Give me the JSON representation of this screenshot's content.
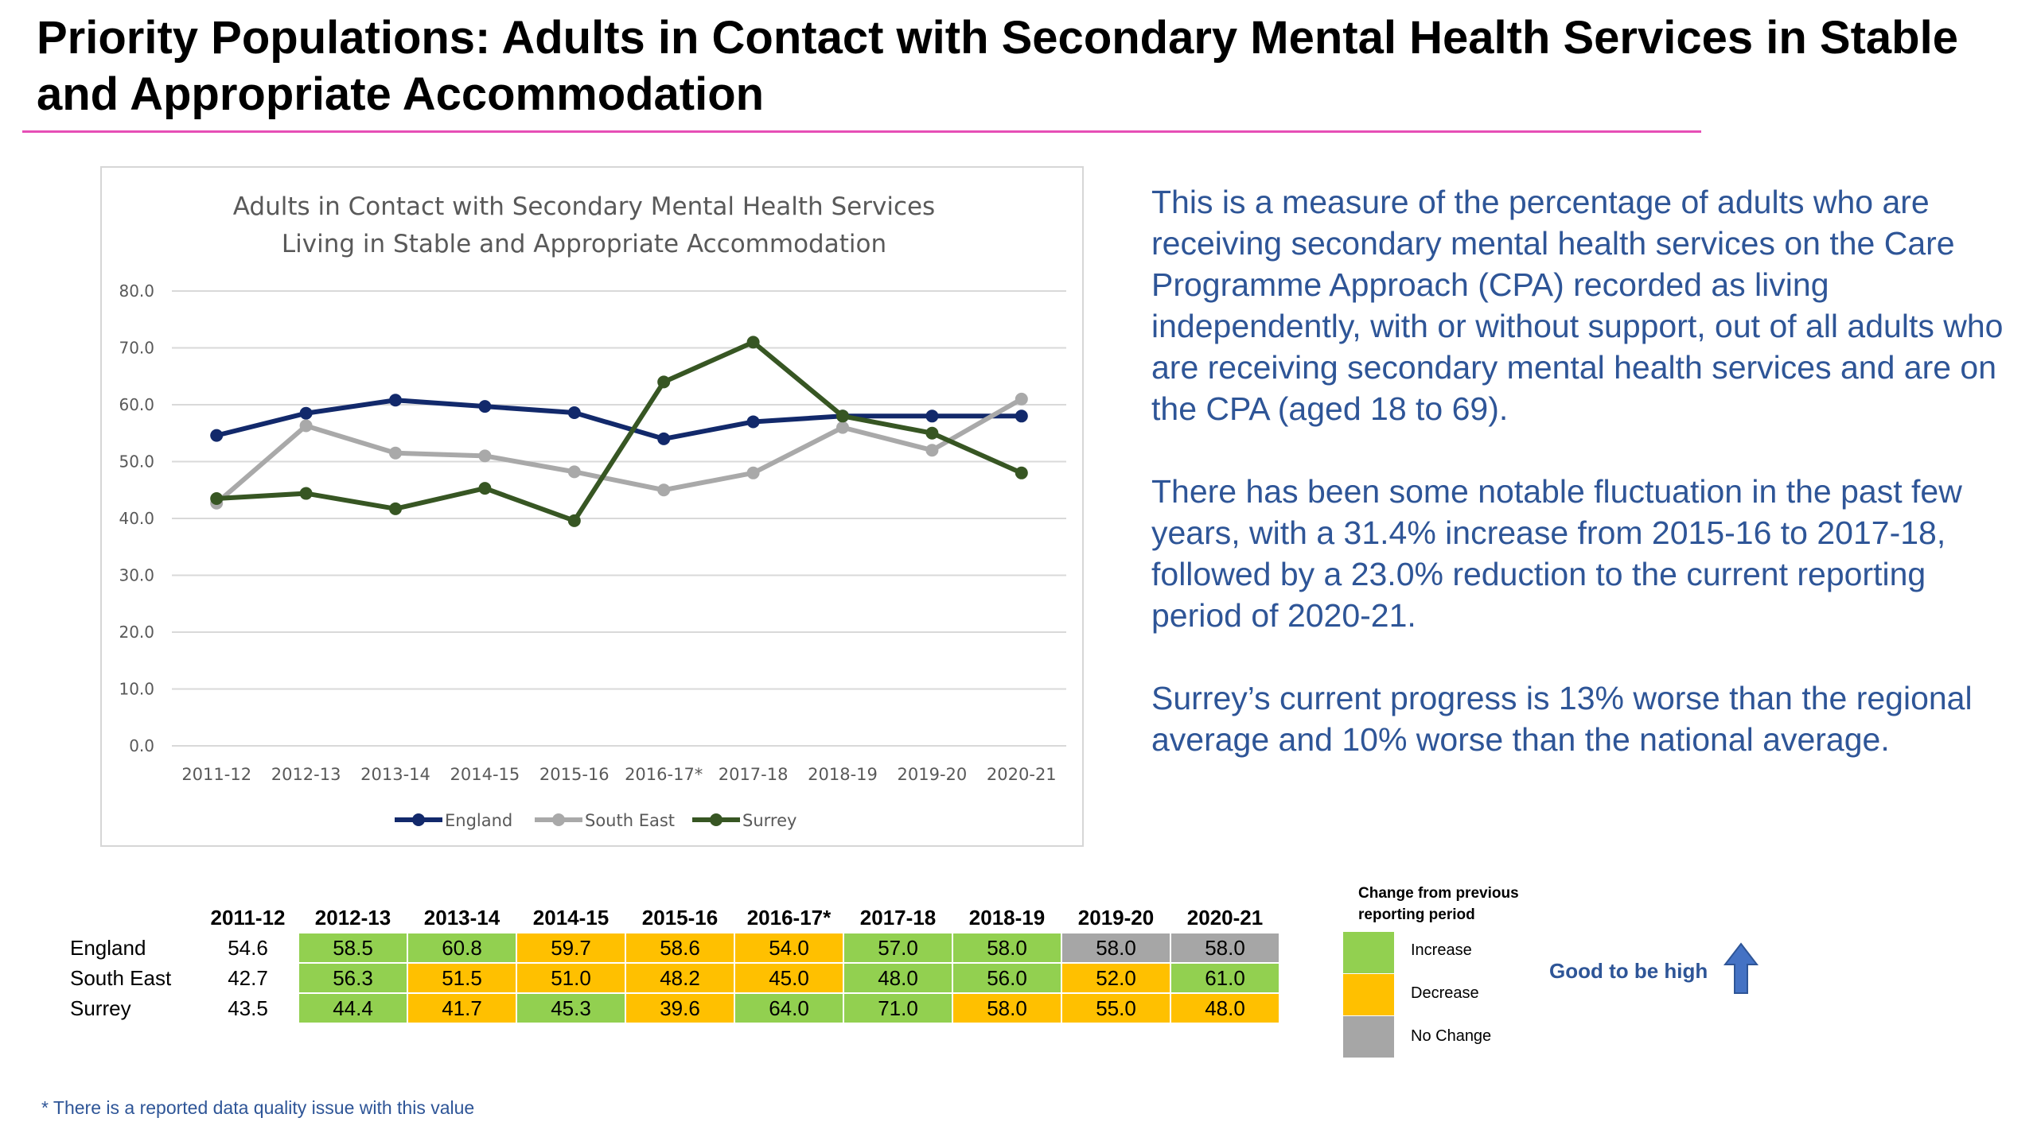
{
  "page": {
    "title": "Priority Populations: Adults in Contact with Secondary Mental Health Services in Stable and Appropriate Accommodation",
    "footnote": "* There is a reported data quality issue with this value"
  },
  "description": {
    "paragraphs": [
      "This is a measure of the percentage of adults who are receiving secondary mental health services on the Care Programme Approach (CPA) recorded as living independently, with or without support, out of all adults who are receiving secondary mental health services and are on the CPA (aged 18 to 69).",
      "There has been some notable fluctuation in the past few years, with a 31.4% increase from 2015-16 to 2017-18, followed by a 23.0% reduction to the current reporting period of 2020-21.",
      "Surrey’s current progress is 13% worse than the regional average and 10% worse than the national average."
    ]
  },
  "chart_data": {
    "type": "line",
    "title": "Adults in Contact with Secondary Mental Health Services Living in Stable and Appropriate Accommodation",
    "title_lines": [
      "Adults in Contact with Secondary Mental Health Services",
      "Living in Stable and Appropriate Accommodation"
    ],
    "categories": [
      "2011-12",
      "2012-13",
      "2013-14",
      "2014-15",
      "2015-16",
      "2016-17*",
      "2017-18",
      "2018-19",
      "2019-20",
      "2020-21"
    ],
    "yticks": [
      "0.0",
      "10.0",
      "20.0",
      "30.0",
      "40.0",
      "50.0",
      "60.0",
      "70.0",
      "80.0"
    ],
    "ylim": [
      0,
      80
    ],
    "grid": true,
    "legend_position": "bottom",
    "xlabel": "",
    "ylabel": "",
    "series": [
      {
        "name": "England",
        "color": "#12296b",
        "values": [
          54.6,
          58.5,
          60.8,
          59.7,
          58.6,
          54.0,
          57.0,
          58.0,
          58.0,
          58.0
        ]
      },
      {
        "name": "South East",
        "color": "#a9a9a9",
        "values": [
          42.7,
          56.3,
          51.5,
          51.0,
          48.2,
          45.0,
          48.0,
          56.0,
          52.0,
          61.0
        ]
      },
      {
        "name": "Surrey",
        "color": "#375623",
        "values": [
          43.5,
          44.4,
          41.7,
          45.3,
          39.6,
          64.0,
          71.0,
          58.0,
          55.0,
          48.0
        ]
      }
    ]
  },
  "table": {
    "headers": [
      "2011-12",
      "2012-13",
      "2013-14",
      "2014-15",
      "2015-16",
      "2016-17*",
      "2017-18",
      "2018-19",
      "2019-20",
      "2020-21"
    ],
    "rows": [
      {
        "label": "England",
        "cells": [
          "54.6",
          "58.5",
          "60.8",
          "59.7",
          "58.6",
          "54.0",
          "57.0",
          "58.0",
          "58.0",
          "58.0"
        ],
        "status": [
          "none",
          "increase",
          "increase",
          "decrease",
          "decrease",
          "decrease",
          "increase",
          "increase",
          "nochange",
          "nochange"
        ]
      },
      {
        "label": "South East",
        "cells": [
          "42.7",
          "56.3",
          "51.5",
          "51.0",
          "48.2",
          "45.0",
          "48.0",
          "56.0",
          "52.0",
          "61.0"
        ],
        "status": [
          "none",
          "increase",
          "decrease",
          "decrease",
          "decrease",
          "decrease",
          "increase",
          "increase",
          "decrease",
          "increase"
        ]
      },
      {
        "label": "Surrey",
        "cells": [
          "43.5",
          "44.4",
          "41.7",
          "45.3",
          "39.6",
          "64.0",
          "71.0",
          "58.0",
          "55.0",
          "48.0"
        ],
        "status": [
          "none",
          "increase",
          "decrease",
          "increase",
          "decrease",
          "increase",
          "increase",
          "decrease",
          "decrease",
          "decrease"
        ]
      }
    ]
  },
  "key": {
    "title": "Change from previous reporting period",
    "increase_label": "Increase",
    "decrease_label": "Decrease",
    "nochange_label": "No Change",
    "good_label": "Good to be high",
    "colors": {
      "increase": "#92d050",
      "decrease": "#ffc000",
      "nochange": "#a6a6a6",
      "none": "#ffffff"
    }
  }
}
